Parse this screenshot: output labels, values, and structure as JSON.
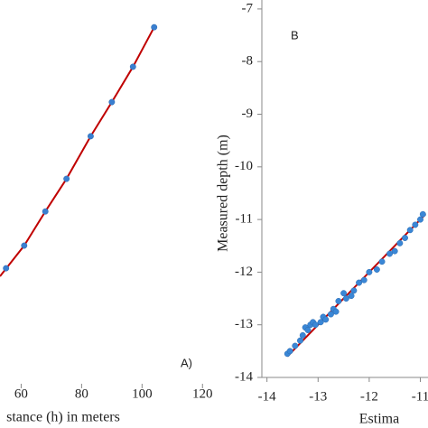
{
  "chart_data": [
    {
      "type": "scatter",
      "xlabel": "stance (h) in meters",
      "annotation": "A)",
      "xlim": [
        53,
        125
      ],
      "ylim": [
        0,
        100
      ],
      "xticks": [
        60,
        80,
        100,
        120
      ],
      "x": [
        55,
        61,
        68,
        75,
        83,
        90,
        97,
        104
      ],
      "y": [
        30.1,
        36,
        44.9,
        53.4,
        64.5,
        73.4,
        82.6,
        92.9
      ],
      "color": "#3a7fd0",
      "fit": {
        "x": [
          53,
          61,
          68,
          75,
          83,
          90,
          97,
          104
        ],
        "y": [
          28,
          36,
          44.9,
          53.4,
          64.5,
          73.4,
          82.6,
          92.9
        ],
        "color": "#c00000"
      }
    },
    {
      "type": "scatter",
      "xlabel": "Estima",
      "ylabel": "Measured depth (m)",
      "annotation": "B",
      "xlim": [
        -14.1,
        -10.85
      ],
      "ylim": [
        -14,
        -6.83
      ],
      "xticks": [
        -14,
        -13,
        -12,
        -11
      ],
      "yticks": [
        -14,
        -13,
        -12,
        -11,
        -10,
        -9,
        -8,
        -7
      ],
      "x": [
        -13.6,
        -13.55,
        -13.45,
        -13.35,
        -13.3,
        -13.25,
        -13.2,
        -13.15,
        -13.1,
        -13.05,
        -12.95,
        -12.9,
        -12.85,
        -12.75,
        -12.7,
        -12.65,
        -12.6,
        -12.5,
        -12.45,
        -12.35,
        -12.3,
        -12.2,
        -12.1,
        -12.0,
        -11.85,
        -11.75,
        -11.6,
        -11.5,
        -11.4,
        -11.3,
        -11.2,
        -11.1,
        -11.0,
        -10.95
      ],
      "y": [
        -13.55,
        -13.5,
        -13.4,
        -13.3,
        -13.2,
        -13.05,
        -13.1,
        -13.0,
        -12.95,
        -13.0,
        -12.95,
        -12.85,
        -12.9,
        -12.8,
        -12.7,
        -12.75,
        -12.55,
        -12.4,
        -12.5,
        -12.45,
        -12.35,
        -12.2,
        -12.15,
        -12.0,
        -11.95,
        -11.8,
        -11.65,
        -11.6,
        -11.45,
        -11.35,
        -11.2,
        -11.1,
        -11.0,
        -10.9
      ],
      "color": "#3a87d6",
      "fit": {
        "x": [
          -13.6,
          -10.9
        ],
        "y": [
          -13.6,
          -10.9
        ],
        "color": "#c00000"
      }
    }
  ]
}
